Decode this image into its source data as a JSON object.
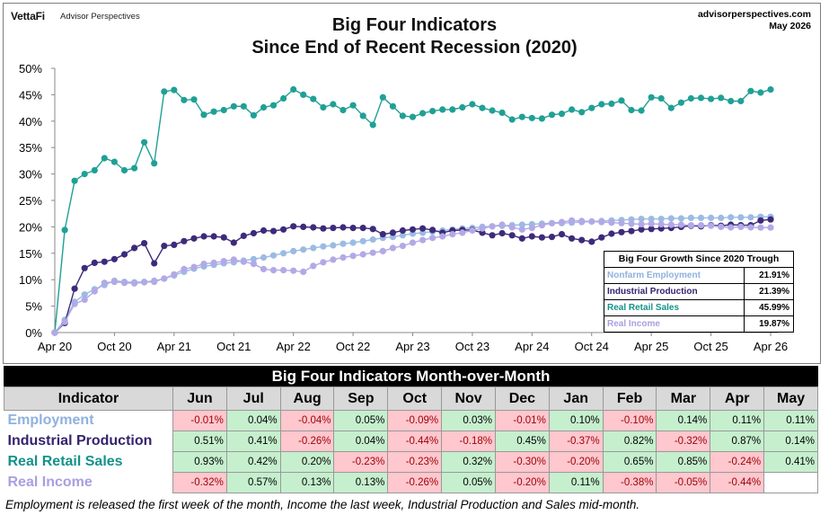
{
  "header": {
    "logo": "VettaFi",
    "logo_sub": "Advisor Perspectives",
    "title_line1": "Big Four Indicators",
    "title_line2": "Since  End of Recent Recession (2020)",
    "site": "advisorperspectives.com",
    "date": "May 2026"
  },
  "colors": {
    "employment": "#9bbbe3",
    "industrial": "#3d2a7a",
    "retail": "#20a095",
    "income": "#b3a9e6",
    "retail_text": "#13928a",
    "income_text": "#a99fe0",
    "employment_text": "#8fb1de",
    "industrial_text": "#36226e"
  },
  "chart_data": {
    "type": "line",
    "title": "Big Four Indicators Since  End of Recent Recession (2020)",
    "xlabel": "",
    "ylabel": "",
    "ylim": [
      0,
      50
    ],
    "y_ticks": [
      "0%",
      "5%",
      "10%",
      "15%",
      "20%",
      "25%",
      "30%",
      "35%",
      "40%",
      "45%",
      "50%"
    ],
    "x_ticks": [
      "Apr 20",
      "Oct 20",
      "Apr 21",
      "Oct 21",
      "Apr 22",
      "Oct 22",
      "Apr 23",
      "Oct 23",
      "Apr 24",
      "Oct 24",
      "Apr 25",
      "Oct 25",
      "Apr 26"
    ],
    "x_months_from_apr20": [
      0,
      6,
      12,
      18,
      24,
      30,
      36,
      42,
      48,
      54,
      60,
      66,
      72
    ],
    "grid": false,
    "series": [
      {
        "name": "Nonfarm Employment",
        "key": "employment",
        "values": [
          0,
          2.4,
          5.8,
          7.2,
          8.2,
          9.0,
          9.8,
          9.6,
          9.5,
          9.6,
          9.8,
          10.2,
          10.8,
          11.5,
          12.1,
          12.5,
          12.8,
          13.1,
          13.3,
          13.6,
          13.9,
          14.2,
          14.6,
          15.0,
          15.4,
          15.7,
          16.0,
          16.3,
          16.5,
          16.8,
          17.0,
          17.3,
          17.6,
          17.9,
          18.1,
          18.4,
          18.7,
          18.9,
          19.1,
          19.3,
          19.5,
          19.7,
          19.8,
          20.0,
          20.1,
          20.2,
          20.3,
          20.4,
          20.5,
          20.6,
          20.7,
          20.7,
          20.8,
          20.9,
          21.0,
          21.1,
          21.2,
          21.3,
          21.4,
          21.5,
          21.5,
          21.5,
          21.6,
          21.6,
          21.7,
          21.7,
          21.7,
          21.7,
          21.8,
          21.8,
          21.8,
          21.9,
          21.9
        ]
      },
      {
        "name": "Industrial Production",
        "key": "industrial",
        "values": [
          0,
          1.8,
          8.3,
          12.2,
          13.2,
          13.4,
          13.9,
          14.8,
          16.0,
          16.9,
          13.1,
          16.4,
          16.6,
          17.3,
          17.8,
          18.2,
          18.2,
          18.0,
          17.0,
          18.3,
          18.8,
          19.3,
          19.2,
          19.5,
          20.1,
          20.0,
          19.9,
          19.7,
          19.8,
          19.9,
          19.8,
          19.8,
          19.6,
          18.6,
          18.9,
          19.3,
          19.5,
          19.7,
          19.4,
          18.9,
          19.3,
          19.4,
          19.4,
          18.9,
          18.4,
          18.8,
          18.4,
          17.8,
          18.2,
          18.0,
          18.1,
          18.6,
          17.8,
          17.5,
          17.2,
          18.0,
          18.7,
          19.0,
          19.2,
          19.5,
          19.6,
          19.7,
          19.8,
          20.0,
          20.2,
          20.1,
          20.3,
          20.2,
          20.4,
          20.3,
          20.3,
          21.2,
          21.39
        ]
      },
      {
        "name": "Real Retail Sales",
        "key": "retail",
        "values": [
          0,
          19.4,
          28.7,
          30.0,
          30.7,
          33.0,
          32.3,
          30.7,
          31.1,
          36.0,
          32.0,
          45.6,
          45.9,
          44.0,
          44.1,
          41.2,
          41.8,
          42.1,
          42.8,
          42.8,
          41.1,
          42.6,
          43.0,
          44.3,
          46.0,
          45.0,
          44.2,
          42.6,
          43.2,
          42.1,
          43.0,
          41.0,
          39.3,
          44.5,
          42.8,
          41.0,
          40.8,
          41.5,
          41.9,
          42.2,
          42.2,
          42.6,
          43.2,
          42.5,
          42.0,
          41.6,
          40.3,
          40.8,
          40.6,
          40.5,
          41.2,
          41.4,
          42.2,
          41.7,
          42.5,
          43.2,
          43.3,
          43.9,
          42.1,
          42.0,
          44.5,
          44.3,
          42.5,
          43.5,
          44.3,
          44.4,
          44.2,
          44.4,
          43.8,
          43.8,
          45.7,
          45.4,
          45.99
        ]
      },
      {
        "name": "Real Income",
        "key": "income",
        "values": [
          0,
          2.0,
          5.4,
          6.2,
          7.8,
          9.4,
          9.6,
          9.4,
          9.3,
          9.5,
          9.6,
          10.2,
          11.0,
          12.0,
          12.4,
          13.0,
          13.2,
          13.5,
          13.8,
          13.4,
          13.0,
          12.0,
          11.8,
          11.8,
          11.7,
          11.5,
          12.6,
          13.3,
          13.8,
          14.2,
          14.5,
          14.8,
          15.1,
          15.4,
          16.0,
          16.4,
          17.0,
          17.5,
          17.9,
          18.2,
          18.6,
          18.9,
          19.3,
          19.7,
          20.1,
          20.4,
          19.9,
          19.5,
          19.8,
          20.3,
          20.7,
          20.9,
          21.2,
          21.1,
          21.0,
          20.9,
          20.8,
          20.7,
          20.6,
          20.5,
          20.6,
          20.5,
          20.4,
          20.4,
          20.3,
          20.3,
          20.2,
          20.0,
          19.9,
          20.0,
          19.9,
          19.87,
          19.87
        ]
      }
    ],
    "legend": {
      "title": "Big Four Growth Since 2020 Trough",
      "placement": "bottom-right",
      "items": [
        {
          "name": "Nonfarm Employment",
          "value": "21.91%",
          "key": "employment"
        },
        {
          "name": "Industrial Production",
          "value": "21.39%",
          "key": "industrial"
        },
        {
          "name": "Real Retail Sales",
          "value": "45.99%",
          "key": "retail"
        },
        {
          "name": "Real Income",
          "value": "19.87%",
          "key": "income"
        }
      ]
    }
  },
  "table": {
    "title": "Big Four Indicators Month-over-Month",
    "header_label": "Indicator",
    "months": [
      "Jun",
      "Jul",
      "Aug",
      "Sep",
      "Oct",
      "Nov",
      "Dec",
      "Jan",
      "Feb",
      "Mar",
      "Apr",
      "May"
    ],
    "rows": [
      {
        "label": "Employment",
        "key": "employment",
        "values": [
          "-0.01%",
          "0.04%",
          "-0.04%",
          "0.05%",
          "-0.09%",
          "0.03%",
          "-0.01%",
          "0.10%",
          "-0.10%",
          "0.14%",
          "0.11%",
          "0.11%"
        ]
      },
      {
        "label": "Industrial Production",
        "key": "industrial",
        "values": [
          "0.51%",
          "0.41%",
          "-0.26%",
          "0.04%",
          "-0.44%",
          "-0.18%",
          "0.45%",
          "-0.37%",
          "0.82%",
          "-0.32%",
          "0.87%",
          "0.14%"
        ]
      },
      {
        "label": "Real Retail Sales",
        "key": "retail",
        "values": [
          "0.93%",
          "0.42%",
          "0.20%",
          "-0.23%",
          "-0.23%",
          "0.32%",
          "-0.30%",
          "-0.20%",
          "0.65%",
          "0.85%",
          "-0.24%",
          "0.41%"
        ]
      },
      {
        "label": "Real Income",
        "key": "income",
        "values": [
          "-0.32%",
          "0.57%",
          "0.13%",
          "0.13%",
          "-0.26%",
          "0.05%",
          "-0.20%",
          "0.11%",
          "-0.38%",
          "-0.05%",
          "-0.44%",
          ""
        ]
      }
    ]
  },
  "footnote": "Employment is released the first week of the month, Income the last week, Industrial Production and Sales mid-month."
}
